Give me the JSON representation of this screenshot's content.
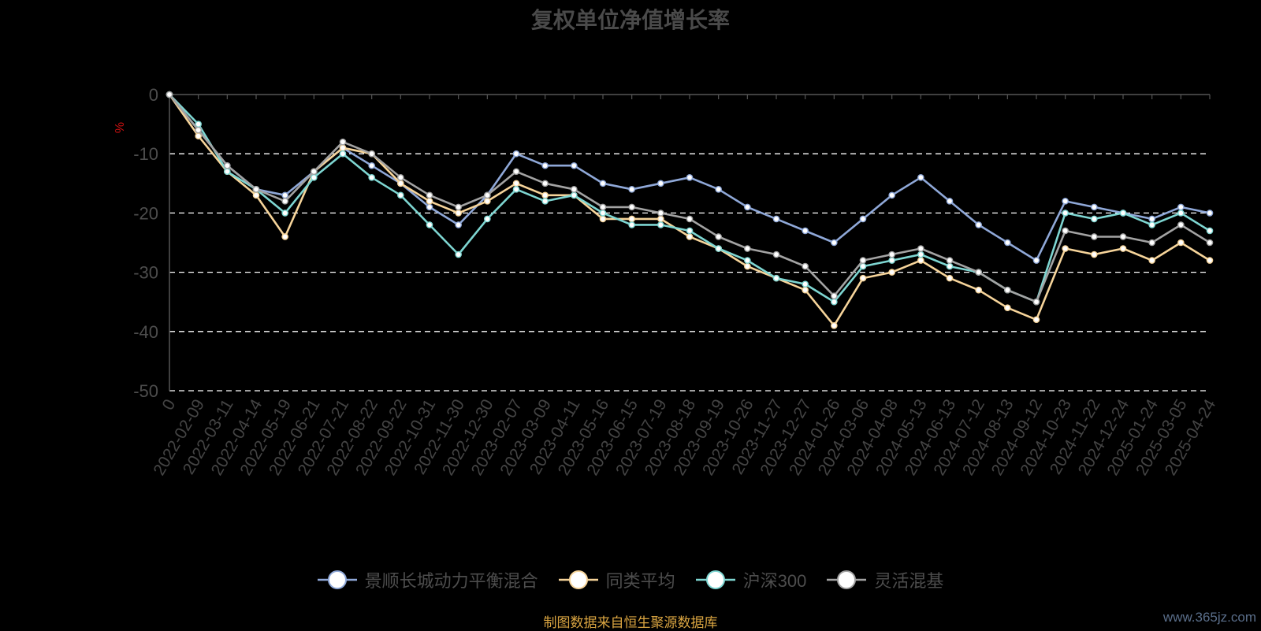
{
  "chart_data": {
    "type": "line",
    "title": "复权单位净值增长率",
    "ylabel": "%",
    "ylim": [
      -50,
      0
    ],
    "yticks": [
      0,
      -10,
      -20,
      -30,
      -40,
      -50
    ],
    "grid": true,
    "legend_position": "bottom",
    "categories": [
      "0",
      "2022-02-09",
      "2022-03-11",
      "2022-04-14",
      "2022-05-19",
      "2022-06-21",
      "2022-07-21",
      "2022-08-22",
      "2022-09-22",
      "2022-10-31",
      "2022-11-30",
      "2022-12-30",
      "2023-02-07",
      "2023-03-09",
      "2023-04-11",
      "2023-05-16",
      "2023-06-15",
      "2023-07-19",
      "2023-08-18",
      "2023-09-19",
      "2023-10-26",
      "2023-11-27",
      "2023-12-27",
      "2024-01-26",
      "2024-03-06",
      "2024-04-08",
      "2024-05-13",
      "2024-06-13",
      "2024-07-12",
      "2024-08-13",
      "2024-09-12",
      "2024-10-23",
      "2024-11-22",
      "2024-12-24",
      "2025-01-24",
      "2025-03-05",
      "2025-04-24"
    ],
    "series": [
      {
        "name": "景顺长城动力平衡混合",
        "color": "#8fa8d8",
        "values": [
          0,
          -6,
          -12,
          -16,
          -17,
          -13,
          -9,
          -12,
          -15,
          -19,
          -22,
          -17,
          -10,
          -12,
          -12,
          -15,
          -16,
          -15,
          -14,
          -16,
          -19,
          -21,
          -23,
          -25,
          -21,
          -17,
          -14,
          -18,
          -22,
          -25,
          -28,
          -18,
          -19,
          -20,
          -21,
          -19,
          -20
        ]
      },
      {
        "name": "同类平均",
        "color": "#f6d49a",
        "values": [
          0,
          -7,
          -13,
          -17,
          -24,
          -13,
          -9,
          -10,
          -15,
          -18,
          -20,
          -18,
          -15,
          -17,
          -17,
          -21,
          -21,
          -21,
          -24,
          -26,
          -29,
          -31,
          -33,
          -39,
          -31,
          -30,
          -28,
          -31,
          -33,
          -36,
          -38,
          -26,
          -27,
          -26,
          -28,
          -25,
          -28
        ]
      },
      {
        "name": "沪深300",
        "color": "#7ed6d2",
        "values": [
          0,
          -5,
          -13,
          -16,
          -20,
          -14,
          -10,
          -14,
          -17,
          -22,
          -27,
          -21,
          -16,
          -18,
          -17,
          -20,
          -22,
          -22,
          -23,
          -26,
          -28,
          -31,
          -32,
          -35,
          -29,
          -28,
          -27,
          -29,
          -30,
          -33,
          -35,
          -20,
          -21,
          -20,
          -22,
          -20,
          -23
        ]
      },
      {
        "name": "灵活混基",
        "color": "#a3a3a3",
        "values": [
          0,
          -6,
          -12,
          -16,
          -18,
          -13,
          -8,
          -10,
          -14,
          -17,
          -19,
          -17,
          -13,
          -15,
          -16,
          -19,
          -19,
          -20,
          -21,
          -24,
          -26,
          -27,
          -29,
          -34,
          -28,
          -27,
          -26,
          -28,
          -30,
          -33,
          -35,
          -23,
          -24,
          -24,
          -25,
          -22,
          -25
        ]
      }
    ]
  },
  "source_note": "制图数据来自恒生聚源数据库",
  "watermark": "www.365jz.com"
}
